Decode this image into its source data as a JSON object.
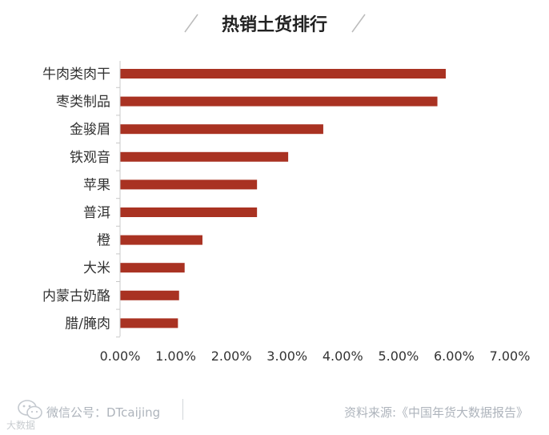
{
  "chart_data": {
    "type": "bar",
    "orientation": "horizontal",
    "title": "热销土货排行",
    "categories": [
      "牛肉类肉干",
      "枣类制品",
      "金骏眉",
      "铁观音",
      "苹果",
      "普洱",
      "橙",
      "大米",
      "内蒙古奶酪",
      "腊/腌肉"
    ],
    "values": [
      5.85,
      5.7,
      3.65,
      3.02,
      2.46,
      2.46,
      1.48,
      1.16,
      1.06,
      1.04
    ],
    "xlim": [
      0,
      7
    ],
    "xticks": [
      "0.00%",
      "1.00%",
      "2.00%",
      "3.00%",
      "4.00%",
      "5.00%",
      "6.00%",
      "7.00%"
    ],
    "xlabel": "",
    "ylabel": "",
    "bar_color": "#a93222",
    "axis_color": "#c8c8c8",
    "grid": false
  },
  "footer": {
    "left_label": "微信公号：DTcaijing",
    "right_label": "资料来源:《中国年货大数据报告》",
    "watermark": "大数据",
    "icon": "wechat-icon"
  },
  "colors": {
    "text": "#333333",
    "footer_text": "#aeb4bc",
    "title_slash": "#bbbbbb"
  }
}
